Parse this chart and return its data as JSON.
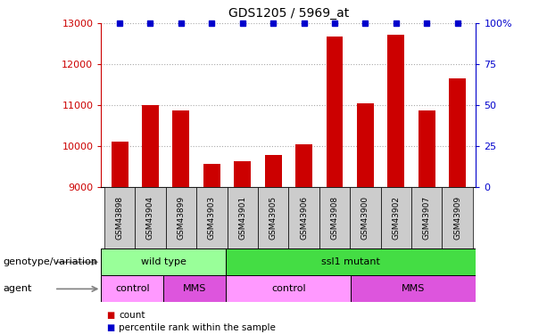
{
  "title": "GDS1205 / 5969_at",
  "samples": [
    "GSM43898",
    "GSM43904",
    "GSM43899",
    "GSM43903",
    "GSM43901",
    "GSM43905",
    "GSM43906",
    "GSM43908",
    "GSM43900",
    "GSM43902",
    "GSM43907",
    "GSM43909"
  ],
  "counts": [
    10100,
    11000,
    10880,
    9560,
    9640,
    9780,
    10050,
    12680,
    11050,
    12730,
    10880,
    11650
  ],
  "percentile": [
    100,
    100,
    100,
    100,
    100,
    100,
    100,
    100,
    100,
    100,
    100,
    100
  ],
  "ylim_left": [
    9000,
    13000
  ],
  "ylim_right": [
    0,
    100
  ],
  "yticks_left": [
    9000,
    10000,
    11000,
    12000,
    13000
  ],
  "yticks_right": [
    0,
    25,
    50,
    75,
    100
  ],
  "ytick_right_labels": [
    "0",
    "25",
    "50",
    "75",
    "100%"
  ],
  "bar_color": "#cc0000",
  "percentile_color": "#0000cc",
  "grid_color": "#aaaaaa",
  "bg_color": "#ffffff",
  "tick_label_color_left": "#cc0000",
  "tick_label_color_right": "#0000cc",
  "genotype_row": [
    {
      "label": "wild type",
      "start": 0,
      "end": 4,
      "color": "#99ff99"
    },
    {
      "label": "ssl1 mutant",
      "start": 4,
      "end": 12,
      "color": "#44dd44"
    }
  ],
  "agent_row": [
    {
      "label": "control",
      "start": 0,
      "end": 2,
      "color": "#ff99ff"
    },
    {
      "label": "MMS",
      "start": 2,
      "end": 4,
      "color": "#dd55dd"
    },
    {
      "label": "control",
      "start": 4,
      "end": 8,
      "color": "#ff99ff"
    },
    {
      "label": "MMS",
      "start": 8,
      "end": 12,
      "color": "#dd55dd"
    }
  ],
  "legend_count_color": "#cc0000",
  "legend_percentile_color": "#0000cc",
  "row_label_genotype": "genotype/variation",
  "row_label_agent": "agent",
  "bar_width": 0.55,
  "xtick_box_color": "#cccccc"
}
